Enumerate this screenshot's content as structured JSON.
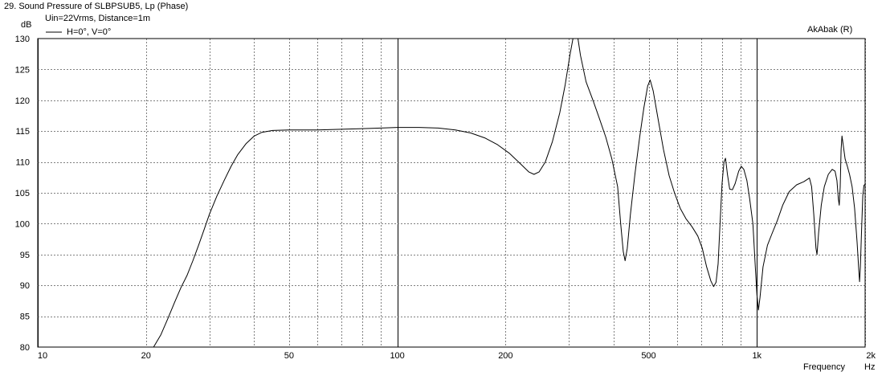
{
  "chart_data": {
    "type": "line",
    "title": "29. Sound Pressure of SLBPSUB5, Lp (Phase)",
    "subtitle": "Uin=22Vrms, Distance=1m",
    "watermark": "AkAbak (R)",
    "xlabel": "Frequency",
    "xunit": "Hz",
    "ylabel": "dB",
    "xscale": "log",
    "xlim": [
      10,
      2000
    ],
    "ylim": [
      80,
      130
    ],
    "x_tick_labels": [
      {
        "value": 10,
        "label": "10"
      },
      {
        "value": 20,
        "label": "20"
      },
      {
        "value": 50,
        "label": "50"
      },
      {
        "value": 100,
        "label": "100"
      },
      {
        "value": 200,
        "label": "200"
      },
      {
        "value": 500,
        "label": "500"
      },
      {
        "value": 1000,
        "label": "1k"
      },
      {
        "value": 2000,
        "label": "2k"
      }
    ],
    "y_ticks": [
      80,
      85,
      90,
      95,
      100,
      105,
      110,
      115,
      120,
      125,
      130
    ],
    "grid": true,
    "legend_position": "top-left",
    "series": [
      {
        "name": "H=0°, V=0°",
        "color": "#000000",
        "points": [
          [
            10,
            80
          ],
          [
            21.0,
            80
          ],
          [
            22.0,
            82
          ],
          [
            23.0,
            84.6
          ],
          [
            24.0,
            87.2
          ],
          [
            25.0,
            89.6
          ],
          [
            26.0,
            91.6
          ],
          [
            27.0,
            94.0
          ],
          [
            28.0,
            96.5
          ],
          [
            29.0,
            99.0
          ],
          [
            30.0,
            101.5
          ],
          [
            31.5,
            104.5
          ],
          [
            33.0,
            107.0
          ],
          [
            34.5,
            109.3
          ],
          [
            36.0,
            111.2
          ],
          [
            38.0,
            113.0
          ],
          [
            40.0,
            114.2
          ],
          [
            42.0,
            114.8
          ],
          [
            45.0,
            115.1
          ],
          [
            50.0,
            115.2
          ],
          [
            60.0,
            115.2
          ],
          [
            70.0,
            115.3
          ],
          [
            80.0,
            115.4
          ],
          [
            90.0,
            115.5
          ],
          [
            100.0,
            115.6
          ],
          [
            115.0,
            115.6
          ],
          [
            130.0,
            115.5
          ],
          [
            145.0,
            115.2
          ],
          [
            160.0,
            114.7
          ],
          [
            175.0,
            113.9
          ],
          [
            190.0,
            112.8
          ],
          [
            205.0,
            111.4
          ],
          [
            220.0,
            109.7
          ],
          [
            232.0,
            108.4
          ],
          [
            240.0,
            108.0
          ],
          [
            248.0,
            108.4
          ],
          [
            258.0,
            110.0
          ],
          [
            270.0,
            113.3
          ],
          [
            283.0,
            118.0
          ],
          [
            293.0,
            122.5
          ],
          [
            302.0,
            127.3
          ],
          [
            308.0,
            130.0
          ],
          [
            318.0,
            130.0
          ],
          [
            323.0,
            127.3
          ],
          [
            335.0,
            123.0
          ],
          [
            350.0,
            120.0
          ],
          [
            365.0,
            117.0
          ],
          [
            380.0,
            114.0
          ],
          [
            395.0,
            110.5
          ],
          [
            410.0,
            106.0
          ],
          [
            418.0,
            100.0
          ],
          [
            425.0,
            95.5
          ],
          [
            430.0,
            94.0
          ],
          [
            436.0,
            96.0
          ],
          [
            445.0,
            101.5
          ],
          [
            458.0,
            108.0
          ],
          [
            472.0,
            114.0
          ],
          [
            485.0,
            118.8
          ],
          [
            497.0,
            122.3
          ],
          [
            505.0,
            123.3
          ],
          [
            515.0,
            121.5
          ],
          [
            530.0,
            117.3
          ],
          [
            550.0,
            112.0
          ],
          [
            570.0,
            107.8
          ],
          [
            590.0,
            105.0
          ],
          [
            612.0,
            102.5
          ],
          [
            635.0,
            100.8
          ],
          [
            660.0,
            99.5
          ],
          [
            685.0,
            98.0
          ],
          [
            705.0,
            96.0
          ],
          [
            725.0,
            93.0
          ],
          [
            745.0,
            90.7
          ],
          [
            758.0,
            89.8
          ],
          [
            770.0,
            90.5
          ],
          [
            780.0,
            93.5
          ],
          [
            790.0,
            100.0
          ],
          [
            800.0,
            106.5
          ],
          [
            810.0,
            110.0
          ],
          [
            818.0,
            110.6
          ],
          [
            828.0,
            108.0
          ],
          [
            840.0,
            105.6
          ],
          [
            855.0,
            105.5
          ],
          [
            870.0,
            106.5
          ],
          [
            890.0,
            108.5
          ],
          [
            905.0,
            109.3
          ],
          [
            920.0,
            108.8
          ],
          [
            938.0,
            107.0
          ],
          [
            955.0,
            104.0
          ],
          [
            975.0,
            100.0
          ],
          [
            990.0,
            93.0
          ],
          [
            1000.0,
            88.5
          ],
          [
            1010.0,
            86.0
          ],
          [
            1020.0,
            88.0
          ],
          [
            1040.0,
            93.0
          ],
          [
            1070.0,
            96.5
          ],
          [
            1100.0,
            98.3
          ],
          [
            1140.0,
            100.5
          ],
          [
            1180.0,
            103.0
          ],
          [
            1230.0,
            105.2
          ],
          [
            1290.0,
            106.3
          ],
          [
            1350.0,
            106.8
          ],
          [
            1400.0,
            107.4
          ],
          [
            1420.0,
            106.0
          ],
          [
            1440.0,
            101.5
          ],
          [
            1460.0,
            96.0
          ],
          [
            1470.0,
            95.0
          ],
          [
            1485.0,
            98.5
          ],
          [
            1510.0,
            103.0
          ],
          [
            1540.0,
            106.0
          ],
          [
            1580.0,
            108.0
          ],
          [
            1620.0,
            108.8
          ],
          [
            1650.0,
            108.5
          ],
          [
            1670.0,
            107.0
          ],
          [
            1685.0,
            104.0
          ],
          [
            1695.0,
            103.0
          ],
          [
            1705.0,
            106.0
          ],
          [
            1715.0,
            112.0
          ],
          [
            1725.0,
            114.2
          ],
          [
            1740.0,
            112.6
          ],
          [
            1760.0,
            110.5
          ],
          [
            1785.0,
            109.3
          ],
          [
            1810.0,
            108.0
          ],
          [
            1840.0,
            106.0
          ],
          [
            1870.0,
            102.5
          ],
          [
            1900.0,
            97.0
          ],
          [
            1920.0,
            92.5
          ],
          [
            1930.0,
            90.6
          ],
          [
            1940.0,
            93.0
          ],
          [
            1955.0,
            99.0
          ],
          [
            1970.0,
            104.5
          ],
          [
            1985.0,
            106.2
          ],
          [
            2000.0,
            106.4
          ]
        ]
      }
    ]
  }
}
